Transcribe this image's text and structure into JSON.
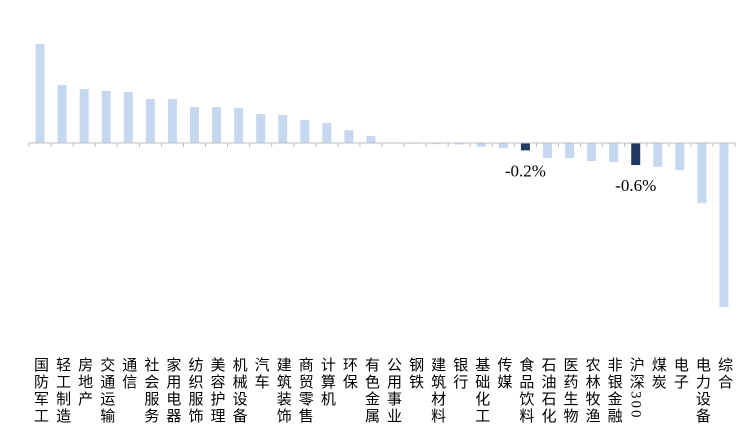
{
  "chart_data": {
    "type": "bar",
    "categories": [
      "国防军工",
      "轻工制造",
      "房地产",
      "交通运输",
      "通信",
      "社会服务",
      "家用电器",
      "纺织服饰",
      "美容护理",
      "机械设备",
      "汽车",
      "建筑装饰",
      "商贸零售",
      "计算机",
      "环保",
      "有色金属",
      "公用事业",
      "钢铁",
      "建筑材料",
      "银行",
      "基础化工",
      "传媒",
      "食品饮料",
      "石油石化",
      "医药生物",
      "农林牧渔",
      "非银金融",
      "沪深300",
      "煤炭",
      "电子",
      "电力设备",
      "综合"
    ],
    "values": [
      2.7,
      1.58,
      1.47,
      1.42,
      1.39,
      1.2,
      1.2,
      0.98,
      0.98,
      0.95,
      0.79,
      0.76,
      0.63,
      0.55,
      0.35,
      0.19,
      0.01,
      -0.02,
      -0.03,
      -0.04,
      -0.1,
      -0.14,
      -0.2,
      -0.41,
      -0.41,
      -0.49,
      -0.52,
      -0.6,
      -0.65,
      -0.74,
      -1.64,
      -4.47
    ],
    "value_labels": [
      null,
      null,
      null,
      null,
      null,
      null,
      null,
      null,
      null,
      null,
      null,
      null,
      null,
      null,
      null,
      null,
      null,
      null,
      null,
      null,
      null,
      null,
      "-0.2%",
      null,
      null,
      null,
      null,
      "-0.6%",
      null,
      null,
      null,
      null
    ],
    "colors": [
      "#c5d8f0",
      "#c5d8f0",
      "#c5d8f0",
      "#c5d8f0",
      "#c5d8f0",
      "#c5d8f0",
      "#c5d8f0",
      "#c5d8f0",
      "#c5d8f0",
      "#c5d8f0",
      "#c5d8f0",
      "#c5d8f0",
      "#c5d8f0",
      "#c5d8f0",
      "#c5d8f0",
      "#c5d8f0",
      "#c5d8f0",
      "#c5d8f0",
      "#c5d8f0",
      "#c5d8f0",
      "#c5d8f0",
      "#c5d8f0",
      "#1f3864",
      "#c5d8f0",
      "#c5d8f0",
      "#c5d8f0",
      "#c5d8f0",
      "#1f3864",
      "#c5d8f0",
      "#c5d8f0",
      "#c5d8f0",
      "#c5d8f0"
    ]
  }
}
